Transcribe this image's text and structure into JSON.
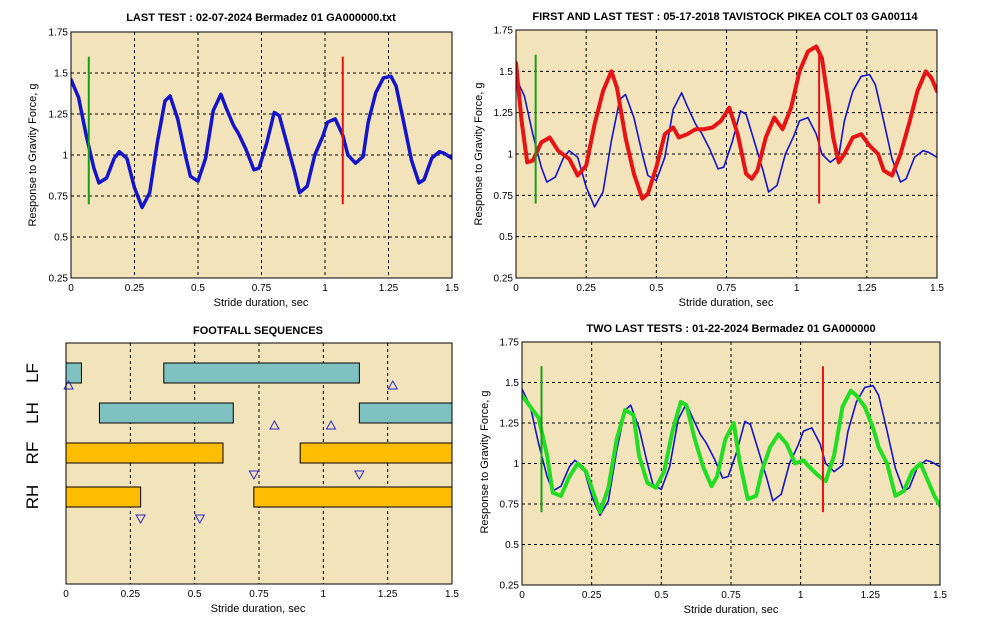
{
  "colors": {
    "panel_bg": "#f3e3bb",
    "blue": "#1414c8",
    "red": "#e61414",
    "green": "#16a016",
    "lime": "#22dd22",
    "teal": "#7fc1c1",
    "gold": "#ffbd00",
    "triangle": "#2828c8"
  },
  "chart_data": [
    {
      "id": "last-test",
      "type": "line",
      "title": "LAST TEST : 02-07-2024 Bermadez 01 GA000000.txt",
      "xlabel": "Stride duration, sec",
      "ylabel": "Response to Gravity Force, g",
      "xlim": [
        0,
        1.5
      ],
      "ylim": [
        0.25,
        1.75
      ],
      "xticks": [
        "0",
        "0.25",
        "0.5",
        "0.75",
        "1",
        "1.25",
        "1.5"
      ],
      "yticks": [
        "0.25",
        "0.5",
        "0.75",
        "1",
        "1.25",
        "1.5",
        "1.75"
      ],
      "grid": true,
      "markers": [
        {
          "color": "green",
          "x": 0.07,
          "y": [
            0.7,
            1.6
          ]
        },
        {
          "color": "red",
          "x": 1.07,
          "y": [
            0.7,
            1.6
          ]
        }
      ],
      "series": [
        {
          "color": "blue",
          "width": 3.5,
          "x": [
            0,
            0.03,
            0.06,
            0.09,
            0.11,
            0.14,
            0.17,
            0.19,
            0.22,
            0.25,
            0.28,
            0.31,
            0.34,
            0.37,
            0.39,
            0.42,
            0.45,
            0.47,
            0.5,
            0.53,
            0.56,
            0.59,
            0.61,
            0.64,
            0.66,
            0.69,
            0.72,
            0.74,
            0.77,
            0.8,
            0.82,
            0.85,
            0.88,
            0.9,
            0.93,
            0.96,
            0.99,
            1.01,
            1.04,
            1.07,
            1.09,
            1.12,
            1.15,
            1.17,
            1.2,
            1.23,
            1.26,
            1.28,
            1.31,
            1.34,
            1.37,
            1.39,
            1.42,
            1.45,
            1.47,
            1.5
          ],
          "y": [
            1.46,
            1.35,
            1.12,
            0.92,
            0.83,
            0.86,
            0.98,
            1.02,
            0.98,
            0.8,
            0.68,
            0.77,
            1.08,
            1.33,
            1.36,
            1.22,
            1.0,
            0.87,
            0.84,
            0.98,
            1.27,
            1.37,
            1.29,
            1.18,
            1.13,
            1.03,
            0.91,
            0.92,
            1.07,
            1.26,
            1.24,
            1.07,
            0.9,
            0.77,
            0.81,
            1.0,
            1.11,
            1.2,
            1.22,
            1.12,
            1.0,
            0.95,
            0.99,
            1.2,
            1.38,
            1.47,
            1.48,
            1.42,
            1.2,
            0.97,
            0.83,
            0.85,
            0.98,
            1.02,
            1.01,
            0.98
          ]
        }
      ]
    },
    {
      "id": "first-last-test",
      "type": "line",
      "title": "FIRST AND LAST TEST : 05-17-2018 TAVISTOCK PIKEA COLT 03 GA00114",
      "xlabel": "Stride duration, sec",
      "ylabel": "Response to Gravity Force, g",
      "xlim": [
        0,
        1.5
      ],
      "ylim": [
        0.25,
        1.75
      ],
      "xticks": [
        "0",
        "0.25",
        "0.5",
        "0.75",
        "1",
        "1.25",
        "1.5"
      ],
      "yticks": [
        "0.25",
        "0.5",
        "0.75",
        "1",
        "1.25",
        "1.5",
        "1.75"
      ],
      "grid": true,
      "markers": [
        {
          "color": "green",
          "x": 0.07,
          "y": [
            0.7,
            1.6
          ]
        },
        {
          "color": "red",
          "x": 1.08,
          "y": [
            0.7,
            1.6
          ]
        }
      ],
      "series": [
        {
          "color": "blue",
          "width": 1.6,
          "x": [
            0,
            0.03,
            0.06,
            0.09,
            0.11,
            0.14,
            0.17,
            0.19,
            0.22,
            0.25,
            0.28,
            0.31,
            0.34,
            0.37,
            0.39,
            0.42,
            0.45,
            0.47,
            0.5,
            0.53,
            0.56,
            0.59,
            0.61,
            0.64,
            0.66,
            0.69,
            0.72,
            0.74,
            0.77,
            0.8,
            0.82,
            0.85,
            0.88,
            0.9,
            0.93,
            0.96,
            0.99,
            1.01,
            1.04,
            1.07,
            1.09,
            1.12,
            1.15,
            1.17,
            1.2,
            1.23,
            1.26,
            1.28,
            1.31,
            1.34,
            1.37,
            1.39,
            1.42,
            1.45,
            1.47,
            1.5
          ],
          "y": [
            1.46,
            1.35,
            1.12,
            0.92,
            0.83,
            0.86,
            0.98,
            1.02,
            0.98,
            0.8,
            0.68,
            0.77,
            1.08,
            1.33,
            1.36,
            1.22,
            1.0,
            0.87,
            0.84,
            0.98,
            1.27,
            1.37,
            1.29,
            1.18,
            1.13,
            1.03,
            0.91,
            0.92,
            1.07,
            1.26,
            1.24,
            1.07,
            0.9,
            0.77,
            0.81,
            1.0,
            1.11,
            1.2,
            1.22,
            1.12,
            1.0,
            0.95,
            0.99,
            1.2,
            1.38,
            1.47,
            1.48,
            1.42,
            1.2,
            0.97,
            0.83,
            0.85,
            0.98,
            1.02,
            1.01,
            0.98
          ]
        },
        {
          "color": "red",
          "width": 4,
          "x": [
            0,
            0.02,
            0.04,
            0.06,
            0.09,
            0.12,
            0.15,
            0.19,
            0.22,
            0.25,
            0.28,
            0.31,
            0.34,
            0.36,
            0.39,
            0.42,
            0.45,
            0.47,
            0.5,
            0.53,
            0.56,
            0.58,
            0.61,
            0.64,
            0.67,
            0.7,
            0.73,
            0.76,
            0.79,
            0.82,
            0.84,
            0.86,
            0.89,
            0.92,
            0.95,
            0.98,
            1.01,
            1.04,
            1.07,
            1.09,
            1.11,
            1.13,
            1.15,
            1.17,
            1.2,
            1.23,
            1.26,
            1.29,
            1.31,
            1.34,
            1.37,
            1.4,
            1.43,
            1.46,
            1.48,
            1.5
          ],
          "y": [
            1.55,
            1.2,
            0.95,
            0.96,
            1.07,
            1.1,
            1.02,
            0.97,
            0.87,
            0.93,
            1.18,
            1.38,
            1.5,
            1.4,
            1.1,
            0.88,
            0.73,
            0.76,
            0.92,
            1.12,
            1.16,
            1.1,
            1.12,
            1.15,
            1.15,
            1.16,
            1.2,
            1.28,
            1.12,
            0.88,
            0.85,
            0.9,
            1.1,
            1.22,
            1.15,
            1.28,
            1.5,
            1.62,
            1.65,
            1.58,
            1.35,
            1.1,
            0.95,
            1.0,
            1.1,
            1.12,
            1.05,
            1.0,
            0.9,
            0.87,
            1.0,
            1.18,
            1.38,
            1.5,
            1.46,
            1.38
          ]
        }
      ]
    },
    {
      "id": "footfall",
      "type": "bar",
      "title": "FOOTFALL SEQUENCES",
      "xlabel": "Stride duration, sec",
      "xlim": [
        0,
        1.5
      ],
      "xticks": [
        "0",
        "0.25",
        "0.5",
        "0.75",
        "1",
        "1.25",
        "1.5"
      ],
      "grid": true,
      "rows": [
        {
          "label": "LF",
          "color": "teal",
          "bars": [
            [
              0,
              0.06
            ],
            [
              0.38,
              1.14
            ]
          ],
          "triangles": [
            {
              "x": 0.01,
              "dir": "up"
            },
            {
              "x": 1.27,
              "dir": "up"
            }
          ]
        },
        {
          "label": "LH",
          "color": "teal",
          "bars": [
            [
              0.13,
              0.65
            ],
            [
              1.14,
              1.5
            ]
          ],
          "triangles": [
            {
              "x": 0.81,
              "dir": "up"
            },
            {
              "x": 1.03,
              "dir": "up"
            }
          ]
        },
        {
          "label": "RF",
          "color": "gold",
          "bars": [
            [
              0,
              0.61
            ],
            [
              0.91,
              1.5
            ]
          ],
          "triangles": [
            {
              "x": 0.73,
              "dir": "down"
            },
            {
              "x": 1.14,
              "dir": "down"
            }
          ]
        },
        {
          "label": "RH",
          "color": "gold",
          "bars": [
            [
              0,
              0.29
            ],
            [
              0.73,
              1.5
            ]
          ],
          "triangles": [
            {
              "x": 0.29,
              "dir": "down"
            },
            {
              "x": 0.52,
              "dir": "down"
            }
          ]
        }
      ]
    },
    {
      "id": "two-last-tests",
      "type": "line",
      "title": "TWO LAST TESTS : 01-22-2024 Bermadez 01 GA000000",
      "xlabel": "Stride duration, sec",
      "ylabel": "Response to Gravity Force, g",
      "xlim": [
        0,
        1.5
      ],
      "ylim": [
        0.25,
        1.75
      ],
      "xticks": [
        "0",
        "0.25",
        "0.5",
        "0.75",
        "1",
        "1.25",
        "1.5"
      ],
      "yticks": [
        "0.25",
        "0.5",
        "0.75",
        "1",
        "1.25",
        "1.5",
        "1.75"
      ],
      "grid": true,
      "markers": [
        {
          "color": "green",
          "x": 0.07,
          "y": [
            0.7,
            1.6
          ]
        },
        {
          "color": "red",
          "x": 1.08,
          "y": [
            0.7,
            1.6
          ]
        }
      ],
      "series": [
        {
          "color": "blue",
          "width": 1.6,
          "x": [
            0,
            0.03,
            0.06,
            0.09,
            0.11,
            0.14,
            0.17,
            0.19,
            0.22,
            0.25,
            0.28,
            0.31,
            0.34,
            0.37,
            0.39,
            0.42,
            0.45,
            0.47,
            0.5,
            0.53,
            0.56,
            0.59,
            0.61,
            0.64,
            0.66,
            0.69,
            0.72,
            0.74,
            0.77,
            0.8,
            0.82,
            0.85,
            0.88,
            0.9,
            0.93,
            0.96,
            0.99,
            1.01,
            1.04,
            1.07,
            1.09,
            1.12,
            1.15,
            1.17,
            1.2,
            1.23,
            1.26,
            1.28,
            1.31,
            1.34,
            1.37,
            1.39,
            1.42,
            1.45,
            1.47,
            1.5
          ],
          "y": [
            1.46,
            1.35,
            1.12,
            0.92,
            0.83,
            0.86,
            0.98,
            1.02,
            0.98,
            0.8,
            0.68,
            0.77,
            1.08,
            1.33,
            1.36,
            1.22,
            1.0,
            0.87,
            0.84,
            0.98,
            1.27,
            1.37,
            1.29,
            1.18,
            1.13,
            1.03,
            0.91,
            0.92,
            1.07,
            1.26,
            1.24,
            1.07,
            0.9,
            0.77,
            0.81,
            1.0,
            1.11,
            1.2,
            1.22,
            1.12,
            1.0,
            0.95,
            0.99,
            1.2,
            1.38,
            1.47,
            1.48,
            1.42,
            1.2,
            0.97,
            0.83,
            0.85,
            0.98,
            1.02,
            1.01,
            0.98
          ]
        },
        {
          "color": "lime",
          "width": 4,
          "x": [
            0,
            0.03,
            0.06,
            0.09,
            0.11,
            0.14,
            0.17,
            0.2,
            0.23,
            0.26,
            0.28,
            0.31,
            0.34,
            0.37,
            0.4,
            0.42,
            0.45,
            0.48,
            0.51,
            0.54,
            0.57,
            0.59,
            0.62,
            0.65,
            0.68,
            0.7,
            0.73,
            0.76,
            0.78,
            0.81,
            0.84,
            0.86,
            0.89,
            0.92,
            0.95,
            0.98,
            1.01,
            1.03,
            1.06,
            1.09,
            1.12,
            1.15,
            1.18,
            1.2,
            1.23,
            1.26,
            1.28,
            1.31,
            1.34,
            1.37,
            1.4,
            1.43,
            1.45,
            1.48,
            1.5
          ],
          "y": [
            1.42,
            1.35,
            1.28,
            1.05,
            0.82,
            0.8,
            0.92,
            1.0,
            0.95,
            0.8,
            0.7,
            0.85,
            1.15,
            1.33,
            1.3,
            1.05,
            0.88,
            0.85,
            0.95,
            1.2,
            1.38,
            1.36,
            1.15,
            0.98,
            0.86,
            0.92,
            1.15,
            1.25,
            1.02,
            0.78,
            0.8,
            0.95,
            1.1,
            1.18,
            1.12,
            1.0,
            1.02,
            0.98,
            0.93,
            0.89,
            1.05,
            1.35,
            1.45,
            1.42,
            1.35,
            1.22,
            1.1,
            1.0,
            0.8,
            0.83,
            0.95,
            1.0,
            0.92,
            0.8,
            0.74
          ]
        }
      ]
    }
  ]
}
